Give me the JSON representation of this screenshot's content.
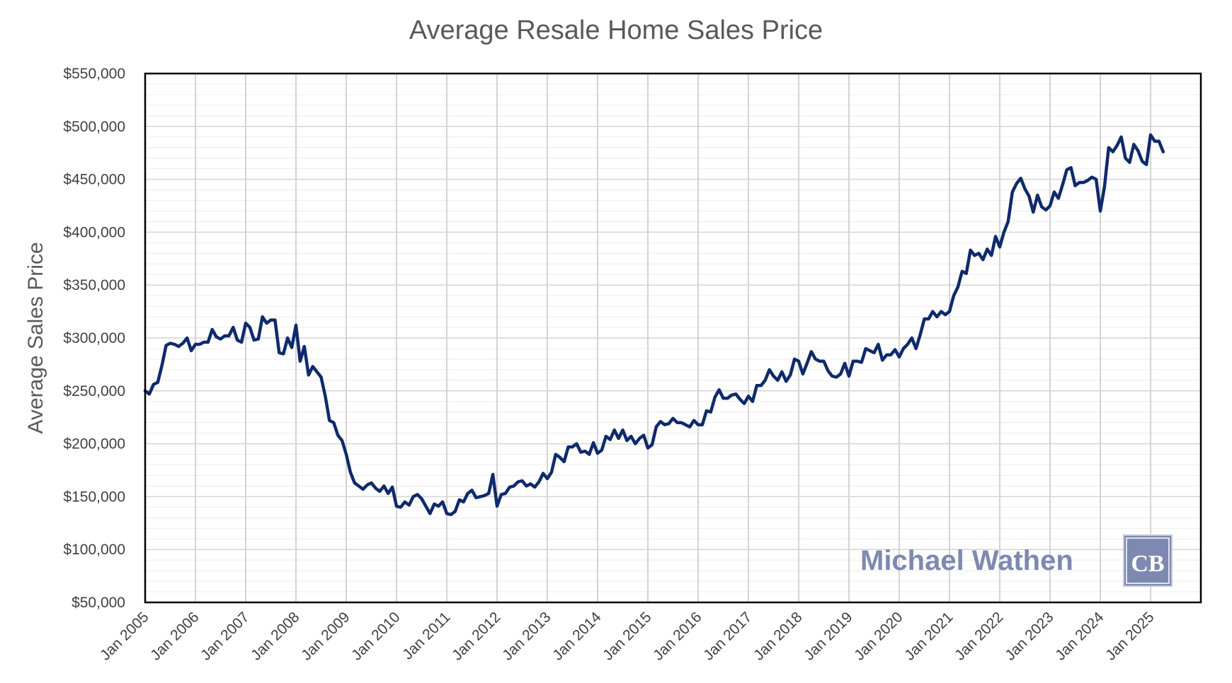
{
  "chart_data": {
    "type": "line",
    "title": "Average Resale Home Sales Price",
    "xlabel": "",
    "ylabel": "Average Sales Price",
    "ylim": [
      50000,
      550000
    ],
    "xlim": [
      "2005-01",
      "2026-01"
    ],
    "grid": true,
    "legend": "none",
    "ytick_labels": [
      "$50,000",
      "$100,000",
      "$150,000",
      "$200,000",
      "$250,000",
      "$300,000",
      "$350,000",
      "$400,000",
      "$450,000",
      "$500,000",
      "$550,000"
    ],
    "ytick_values": [
      50000,
      100000,
      150000,
      200000,
      250000,
      300000,
      350000,
      400000,
      450000,
      500000,
      550000
    ],
    "xtick_labels": [
      "Jan 2005",
      "Jan 2006",
      "Jan 2007",
      "Jan 2008",
      "Jan 2009",
      "Jan 2010",
      "Jan 2011",
      "Jan 2012",
      "Jan 2013",
      "Jan 2014",
      "Jan 2015",
      "Jan 2016",
      "Jan 2017",
      "Jan 2018",
      "Jan 2019",
      "Jan 2020",
      "Jan 2021",
      "Jan 2022",
      "Jan 2023",
      "Jan 2024",
      "Jan 2025"
    ],
    "xtick_dates": [
      "2005-01",
      "2006-01",
      "2007-01",
      "2008-01",
      "2009-01",
      "2010-01",
      "2011-01",
      "2012-01",
      "2013-01",
      "2014-01",
      "2015-01",
      "2016-01",
      "2017-01",
      "2018-01",
      "2019-01",
      "2020-01",
      "2021-01",
      "2022-01",
      "2023-01",
      "2024-01",
      "2025-01"
    ],
    "line_color": "#0f2a6b",
    "series": [
      {
        "x": [
          "2005-01",
          "2005-02",
          "2005-03",
          "2005-04",
          "2005-05",
          "2005-06",
          "2005-07",
          "2005-08",
          "2005-09",
          "2005-10",
          "2005-11",
          "2005-12",
          "2006-01",
          "2006-02",
          "2006-03",
          "2006-04",
          "2006-05",
          "2006-06",
          "2006-07",
          "2006-08",
          "2006-09",
          "2006-10",
          "2006-11",
          "2006-12",
          "2007-01",
          "2007-02",
          "2007-03",
          "2007-04",
          "2007-05",
          "2007-06",
          "2007-07",
          "2007-08",
          "2007-09",
          "2007-10",
          "2007-11",
          "2007-12",
          "2008-01",
          "2008-02",
          "2008-03",
          "2008-04",
          "2008-05",
          "2008-06",
          "2008-07",
          "2008-08",
          "2008-09",
          "2008-10",
          "2008-11",
          "2008-12",
          "2009-01",
          "2009-02",
          "2009-03",
          "2009-04",
          "2009-05",
          "2009-06",
          "2009-07",
          "2009-08",
          "2009-09",
          "2009-10",
          "2009-11",
          "2009-12",
          "2010-01",
          "2010-02",
          "2010-03",
          "2010-04",
          "2010-05",
          "2010-06",
          "2010-07",
          "2010-08",
          "2010-09",
          "2010-10",
          "2010-11",
          "2010-12",
          "2011-01",
          "2011-02",
          "2011-03",
          "2011-04",
          "2011-05",
          "2011-06",
          "2011-07",
          "2011-08",
          "2011-09",
          "2011-10",
          "2011-11",
          "2011-12",
          "2012-01",
          "2012-02",
          "2012-03",
          "2012-04",
          "2012-05",
          "2012-06",
          "2012-07",
          "2012-08",
          "2012-09",
          "2012-10",
          "2012-11",
          "2012-12",
          "2013-01",
          "2013-02",
          "2013-03",
          "2013-04",
          "2013-05",
          "2013-06",
          "2013-07",
          "2013-08",
          "2013-09",
          "2013-10",
          "2013-11",
          "2013-12",
          "2014-01",
          "2014-02",
          "2014-03",
          "2014-04",
          "2014-05",
          "2014-06",
          "2014-07",
          "2014-08",
          "2014-09",
          "2014-10",
          "2014-11",
          "2014-12",
          "2015-01",
          "2015-02",
          "2015-03",
          "2015-04",
          "2015-05",
          "2015-06",
          "2015-07",
          "2015-08",
          "2015-09",
          "2015-10",
          "2015-11",
          "2015-12",
          "2016-01",
          "2016-02",
          "2016-03",
          "2016-04",
          "2016-05",
          "2016-06",
          "2016-07",
          "2016-08",
          "2016-09",
          "2016-10",
          "2016-11",
          "2016-12",
          "2017-01",
          "2017-02",
          "2017-03",
          "2017-04",
          "2017-05",
          "2017-06",
          "2017-07",
          "2017-08",
          "2017-09",
          "2017-10",
          "2017-11",
          "2017-12",
          "2018-01",
          "2018-02",
          "2018-03",
          "2018-04",
          "2018-05",
          "2018-06",
          "2018-07",
          "2018-08",
          "2018-09",
          "2018-10",
          "2018-11",
          "2018-12",
          "2019-01",
          "2019-02",
          "2019-03",
          "2019-04",
          "2019-05",
          "2019-06",
          "2019-07",
          "2019-08",
          "2019-09",
          "2019-10",
          "2019-11",
          "2019-12",
          "2020-01",
          "2020-02",
          "2020-03",
          "2020-04",
          "2020-05",
          "2020-06",
          "2020-07",
          "2020-08",
          "2020-09",
          "2020-10",
          "2020-11",
          "2020-12",
          "2021-01",
          "2021-02",
          "2021-03",
          "2021-04",
          "2021-05",
          "2021-06",
          "2021-07",
          "2021-08",
          "2021-09",
          "2021-10",
          "2021-11",
          "2021-12",
          "2022-01",
          "2022-02",
          "2022-03",
          "2022-04",
          "2022-05",
          "2022-06",
          "2022-07",
          "2022-08",
          "2022-09",
          "2022-10",
          "2022-11",
          "2022-12",
          "2023-01",
          "2023-02",
          "2023-03",
          "2023-04",
          "2023-05",
          "2023-06",
          "2023-07",
          "2023-08",
          "2023-09",
          "2023-10",
          "2023-11",
          "2023-12",
          "2024-01",
          "2024-02",
          "2024-03",
          "2024-04",
          "2024-05",
          "2024-06",
          "2024-07",
          "2024-08",
          "2024-09",
          "2024-10",
          "2024-11",
          "2024-12",
          "2025-01",
          "2025-02",
          "2025-03",
          "2025-04"
        ],
        "y": [
          250000,
          247000,
          256000,
          258000,
          274000,
          293000,
          295000,
          294000,
          292000,
          295000,
          300000,
          288000,
          294000,
          294000,
          296000,
          296000,
          308000,
          301000,
          299000,
          302000,
          302000,
          310000,
          298000,
          296000,
          314000,
          310000,
          298000,
          299000,
          320000,
          314000,
          317000,
          317000,
          286000,
          285000,
          300000,
          291000,
          312000,
          278000,
          292000,
          265000,
          273000,
          268000,
          263000,
          245000,
          222000,
          220000,
          208000,
          203000,
          190000,
          173000,
          163000,
          160000,
          157000,
          161000,
          163000,
          158000,
          155000,
          160000,
          153000,
          159000,
          141000,
          140000,
          145000,
          142000,
          150000,
          152000,
          148000,
          141000,
          134000,
          143000,
          141000,
          145000,
          134000,
          133000,
          136000,
          147000,
          145000,
          153000,
          156000,
          149000,
          150000,
          151000,
          153000,
          171000,
          141000,
          152000,
          153000,
          159000,
          160000,
          164000,
          165000,
          160000,
          162000,
          159000,
          164000,
          172000,
          167000,
          173000,
          190000,
          187000,
          183000,
          197000,
          197000,
          200000,
          192000,
          193000,
          190000,
          201000,
          191000,
          194000,
          207000,
          204000,
          213000,
          205000,
          213000,
          203000,
          207000,
          200000,
          205000,
          208000,
          196000,
          199000,
          216000,
          221000,
          218000,
          219000,
          224000,
          220000,
          220000,
          218000,
          216000,
          222000,
          218000,
          218000,
          231000,
          230000,
          244000,
          251000,
          243000,
          243000,
          246000,
          247000,
          242000,
          238000,
          245000,
          240000,
          255000,
          255000,
          260000,
          270000,
          264000,
          260000,
          268000,
          259000,
          265000,
          280000,
          278000,
          266000,
          276000,
          287000,
          280000,
          278000,
          278000,
          269000,
          264000,
          263000,
          266000,
          276000,
          264000,
          278000,
          278000,
          277000,
          290000,
          288000,
          286000,
          294000,
          279000,
          284000,
          284000,
          289000,
          282000,
          290000,
          294000,
          300000,
          290000,
          303000,
          318000,
          318000,
          325000,
          320000,
          325000,
          322000,
          325000,
          340000,
          348000,
          363000,
          361000,
          383000,
          378000,
          380000,
          374000,
          384000,
          378000,
          396000,
          386000,
          400000,
          410000,
          438000,
          446000,
          451000,
          441000,
          434000,
          419000,
          435000,
          424000,
          421000,
          425000,
          438000,
          432000,
          445000,
          459000,
          461000,
          444000,
          447000,
          447000,
          449000,
          452000,
          450000,
          420000,
          443000,
          480000,
          476000,
          482000,
          490000,
          470000,
          466000,
          483000,
          477000,
          467000,
          464000,
          492000,
          486000,
          486000,
          476000
        ]
      }
    ]
  },
  "watermark": {
    "text": "Michael Wathen",
    "logo_text": "CB",
    "logo_color": "#7d89b0"
  }
}
